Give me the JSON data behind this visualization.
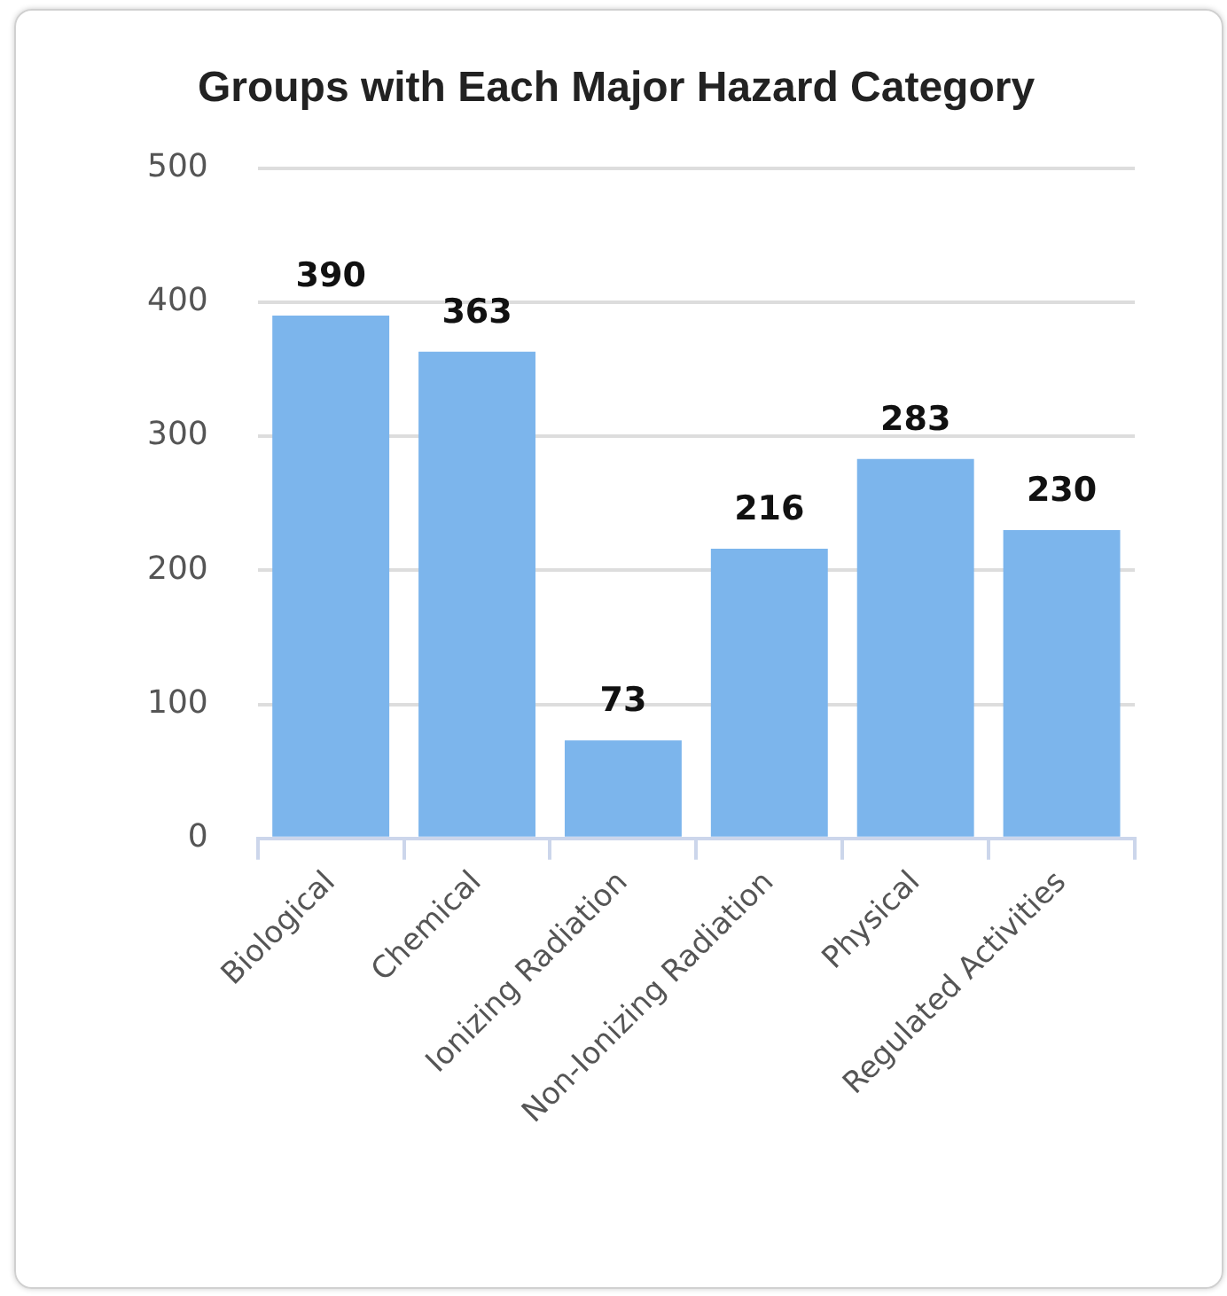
{
  "chart_data": {
    "type": "bar",
    "title": "Groups with Each Major Hazard Category",
    "categories": [
      "Biological",
      "Chemical",
      "Ionizing Radiation",
      "Non-Ionizing Radiation",
      "Physical",
      "Regulated Activities"
    ],
    "values": [
      390,
      363,
      73,
      216,
      283,
      230
    ],
    "color": "#7cb5ec",
    "ylim": [
      0,
      500
    ],
    "yticks": [
      0,
      100,
      200,
      300,
      400,
      500
    ],
    "grid": "y",
    "legend": false,
    "data_labels": true
  }
}
